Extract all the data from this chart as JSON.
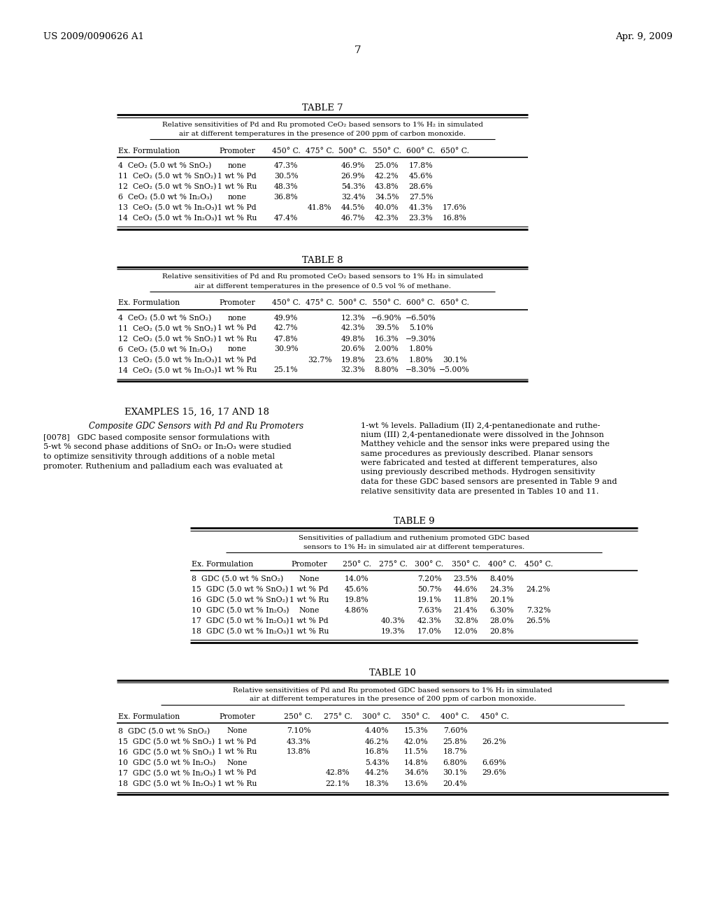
{
  "header_left": "US 2009/0090626 A1",
  "header_right": "Apr. 9, 2009",
  "page_number": "7",
  "background_color": "#ffffff",
  "text_color": "#000000",
  "table7": {
    "title": "TABLE 7",
    "subtitle_line1": "Relative sensitivities of Pd and Ru promoted CeO₂ based sensors to 1% H₂ in simulated",
    "subtitle_line2": "air at different temperatures in the presence of 200 ppm of carbon monoxide.",
    "columns": [
      "Ex. Formulation",
      "Promoter",
      "450° C.",
      "475° C.",
      "500° C.",
      "550° C.",
      "600° C.",
      "650° C."
    ],
    "rows": [
      [
        "4  CeO₂ (5.0 wt % SnO₂)",
        "none",
        "47.3%",
        "",
        "46.9%",
        "25.0%",
        "17.8%",
        ""
      ],
      [
        "11  CeO₂ (5.0 wt % SnO₂)",
        "1 wt % Pd",
        "30.5%",
        "",
        "26.9%",
        "42.2%",
        "45.6%",
        ""
      ],
      [
        "12  CeO₂ (5.0 wt % SnO₂)",
        "1 wt % Ru",
        "48.3%",
        "",
        "54.3%",
        "43.8%",
        "28.6%",
        ""
      ],
      [
        "6  CeO₂ (5.0 wt % In₂O₃)",
        "none",
        "36.8%",
        "",
        "32.4%",
        "34.5%",
        "27.5%",
        ""
      ],
      [
        "13  CeO₂ (5.0 wt % In₂O₃)",
        "1 wt % Pd",
        "",
        "41.8%",
        "44.5%",
        "40.0%",
        "41.3%",
        "17.6%"
      ],
      [
        "14  CeO₂ (5.0 wt % In₂O₃)",
        "1 wt % Ru",
        "47.4%",
        "",
        "46.7%",
        "42.3%",
        "23.3%",
        "16.8%"
      ]
    ]
  },
  "table8": {
    "title": "TABLE 8",
    "subtitle_line1": "Relative sensitivities of Pd and Ru promoted CeO₂ based sensors to 1% H₂ in simulated",
    "subtitle_line2": "air at different temperatures in the presence of 0.5 vol % of methane.",
    "columns": [
      "Ex. Formulation",
      "Promoter",
      "450° C.",
      "475° C.",
      "500° C.",
      "550° C.",
      "600° C.",
      "650° C."
    ],
    "rows": [
      [
        "4  CeO₂ (5.0 wt % SnO₂)",
        "none",
        "49.9%",
        "",
        "12.3%",
        "−6.90%",
        "−6.50%",
        ""
      ],
      [
        "11  CeO₂ (5.0 wt % SnO₂)",
        "1 wt % Pd",
        "42.7%",
        "",
        "42.3%",
        "39.5%",
        "5.10%",
        ""
      ],
      [
        "12  CeO₂ (5.0 wt % SnO₂)",
        "1 wt % Ru",
        "47.8%",
        "",
        "49.8%",
        "16.3%",
        "−9.30%",
        ""
      ],
      [
        "6  CeO₂ (5.0 wt % In₂O₃)",
        "none",
        "30.9%",
        "",
        "20.6%",
        "2.00%",
        "1.80%",
        ""
      ],
      [
        "13  CeO₂ (5.0 wt % In₂O₃)",
        "1 wt % Pd",
        "",
        "32.7%",
        "19.8%",
        "23.6%",
        "1.80%",
        "30.1%"
      ],
      [
        "14  CeO₂ (5.0 wt % In₂O₃)",
        "1 wt % Ru",
        "25.1%",
        "",
        "32.3%",
        "8.80%",
        "−8.30%",
        "−5.00%"
      ]
    ]
  },
  "examples_heading": "EXAMPLES 15, 16, 17 AND 18",
  "examples_subheading": "Composite GDC Sensors with Pd and Ru Promoters",
  "para_left_lines": [
    "[0078]   GDC based composite sensor formulations with",
    "5-wt % second phase additions of SnO₂ or In₂O₃ were studied",
    "to optimize sensitivity through additions of a noble metal",
    "promoter. Ruthenium and palladium each was evaluated at"
  ],
  "para_right_lines": [
    "1-wt % levels. Palladium (II) 2,4-pentanedionate and ruthe-",
    "nium (III) 2,4-pentanedionate were dissolved in the Johnson",
    "Matthey vehicle and the sensor inks were prepared using the",
    "same procedures as previously described. Planar sensors",
    "were fabricated and tested at different temperatures, also",
    "using previously described methods. Hydrogen sensitivity",
    "data for these GDC based sensors are presented in Table 9 and",
    "relative sensitivity data are presented in Tables 10 and 11."
  ],
  "table9": {
    "title": "TABLE 9",
    "subtitle_line1": "Sensitivities of palladium and ruthenium promoted GDC based",
    "subtitle_line2": "sensors to 1% H₂ in simulated air at different temperatures.",
    "columns": [
      "Ex. Formulation",
      "Promoter",
      "250° C.",
      "275° C.",
      "300° C.",
      "350° C.",
      "400° C.",
      "450° C."
    ],
    "rows": [
      [
        "8  GDC (5.0 wt % SnO₂)",
        "None",
        "14.0%",
        "",
        "7.20%",
        "23.5%",
        "8.40%",
        ""
      ],
      [
        "15  GDC (5.0 wt % SnO₂)",
        "1 wt % Pd",
        "45.6%",
        "",
        "50.7%",
        "44.6%",
        "24.3%",
        "24.2%"
      ],
      [
        "16  GDC (5.0 wt % SnO₂)",
        "1 wt % Ru",
        "19.8%",
        "",
        "19.1%",
        "11.8%",
        "20.1%",
        ""
      ],
      [
        "10  GDC (5.0 wt % In₂O₃)",
        "None",
        "4.86%",
        "",
        "7.63%",
        "21.4%",
        "6.30%",
        "7.32%"
      ],
      [
        "17  GDC (5.0 wt % In₂O₃)",
        "1 wt % Pd",
        "",
        "40.3%",
        "42.3%",
        "32.8%",
        "28.0%",
        "26.5%"
      ],
      [
        "18  GDC (5.0 wt % In₂O₃)",
        "1 wt % Ru",
        "",
        "19.3%",
        "17.0%",
        "12.0%",
        "20.8%",
        ""
      ]
    ]
  },
  "table10": {
    "title": "TABLE 10",
    "subtitle_line1": "Relative sensitivities of Pd and Ru promoted GDC based sensors to 1% H₂ in simulated",
    "subtitle_line2": "air at different temperatures in the presence of 200 ppm of carbon monoxide.",
    "columns": [
      "Ex. Formulation",
      "Promoter",
      "250° C.",
      "275° C.",
      "300° C.",
      "350° C.",
      "400° C.",
      "450° C."
    ],
    "rows": [
      [
        "8  GDC (5.0 wt % SnO₂)",
        "None",
        "7.10%",
        "",
        "4.40%",
        "15.3%",
        "7.60%",
        ""
      ],
      [
        "15  GDC (5.0 wt % SnO₂)",
        "1 wt % Pd",
        "43.3%",
        "",
        "46.2%",
        "42.0%",
        "25.8%",
        "26.2%"
      ],
      [
        "16  GDC (5.0 wt % SnO₂)",
        "1 wt % Ru",
        "13.8%",
        "",
        "16.8%",
        "11.5%",
        "18.7%",
        ""
      ],
      [
        "10  GDC (5.0 wt % In₂O₃)",
        "None",
        "",
        "",
        "5.43%",
        "14.8%",
        "6.80%",
        "6.69%"
      ],
      [
        "17  GDC (5.0 wt % In₂O₃)",
        "1 wt % Pd",
        "",
        "42.8%",
        "44.2%",
        "34.6%",
        "30.1%",
        "29.6%"
      ],
      [
        "18  GDC (5.0 wt % In₂O₃)",
        "1 wt % Ru",
        "",
        "22.1%",
        "18.3%",
        "13.6%",
        "20.4%",
        ""
      ]
    ]
  }
}
